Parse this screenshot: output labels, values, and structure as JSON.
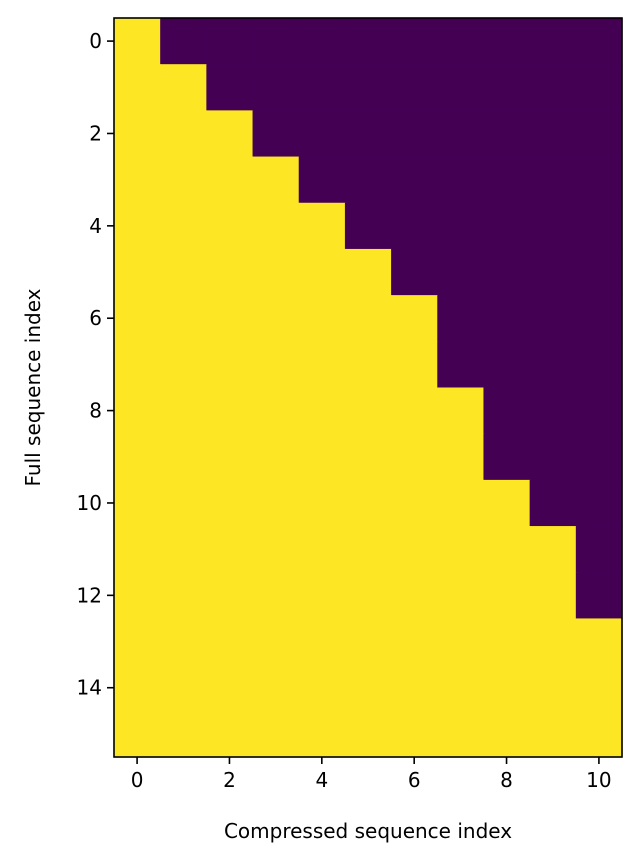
{
  "chart_data": {
    "type": "heatmap",
    "title": "",
    "xlabel": "Compressed sequence index",
    "ylabel": "Full sequence index",
    "n_cols": 11,
    "n_rows": 16,
    "xlim": [
      -0.5,
      10.5
    ],
    "ylim": [
      15.5,
      -0.5
    ],
    "x_ticks": [
      0,
      2,
      4,
      6,
      8,
      10
    ],
    "y_ticks": [
      0,
      2,
      4,
      6,
      8,
      10,
      12,
      14
    ],
    "colormap": {
      "0": "#440154",
      "1": "#fde725"
    },
    "grid": false,
    "legend": "none",
    "matrix": [
      [
        1,
        0,
        0,
        0,
        0,
        0,
        0,
        0,
        0,
        0,
        0
      ],
      [
        1,
        1,
        0,
        0,
        0,
        0,
        0,
        0,
        0,
        0,
        0
      ],
      [
        1,
        1,
        1,
        0,
        0,
        0,
        0,
        0,
        0,
        0,
        0
      ],
      [
        1,
        1,
        1,
        1,
        0,
        0,
        0,
        0,
        0,
        0,
        0
      ],
      [
        1,
        1,
        1,
        1,
        1,
        0,
        0,
        0,
        0,
        0,
        0
      ],
      [
        1,
        1,
        1,
        1,
        1,
        1,
        0,
        0,
        0,
        0,
        0
      ],
      [
        1,
        1,
        1,
        1,
        1,
        1,
        1,
        0,
        0,
        0,
        0
      ],
      [
        1,
        1,
        1,
        1,
        1,
        1,
        1,
        0,
        0,
        0,
        0
      ],
      [
        1,
        1,
        1,
        1,
        1,
        1,
        1,
        1,
        0,
        0,
        0
      ],
      [
        1,
        1,
        1,
        1,
        1,
        1,
        1,
        1,
        0,
        0,
        0
      ],
      [
        1,
        1,
        1,
        1,
        1,
        1,
        1,
        1,
        1,
        0,
        0
      ],
      [
        1,
        1,
        1,
        1,
        1,
        1,
        1,
        1,
        1,
        1,
        0
      ],
      [
        1,
        1,
        1,
        1,
        1,
        1,
        1,
        1,
        1,
        1,
        0
      ],
      [
        1,
        1,
        1,
        1,
        1,
        1,
        1,
        1,
        1,
        1,
        1
      ],
      [
        1,
        1,
        1,
        1,
        1,
        1,
        1,
        1,
        1,
        1,
        1
      ],
      [
        1,
        1,
        1,
        1,
        1,
        1,
        1,
        1,
        1,
        1,
        1
      ]
    ]
  }
}
